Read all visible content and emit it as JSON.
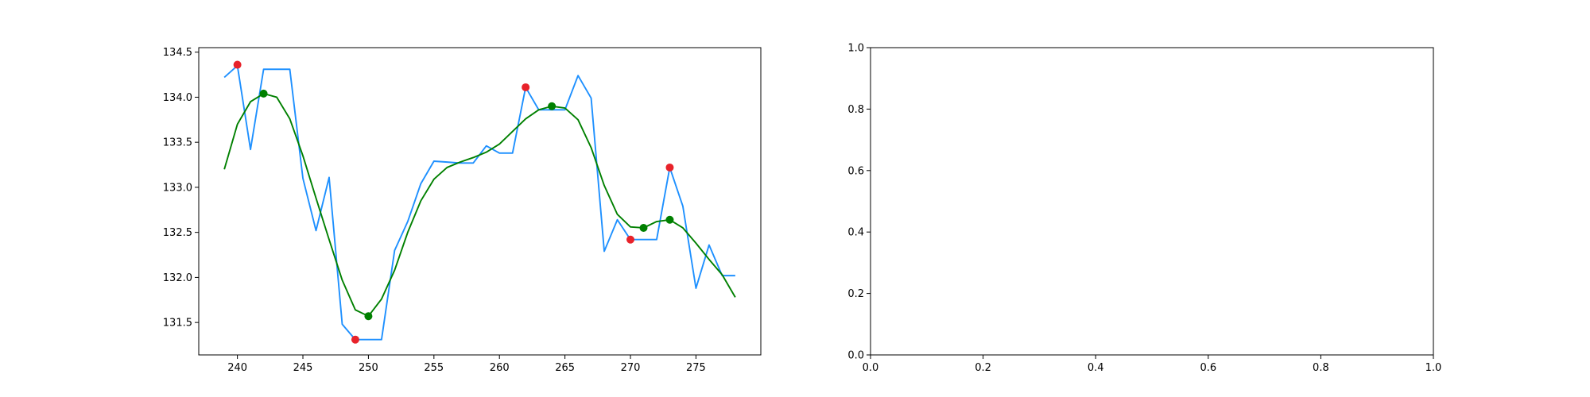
{
  "chart_data": [
    {
      "type": "line",
      "xlim": [
        237.05,
        279.95
      ],
      "ylim": [
        131.14,
        134.55
      ],
      "x_ticks": [
        "240",
        "245",
        "250",
        "255",
        "260",
        "265",
        "270",
        "275"
      ],
      "y_ticks": [
        "131.5",
        "132.0",
        "132.5",
        "133.0",
        "133.5",
        "134.0",
        "134.5"
      ],
      "series": [
        {
          "color": "#1e90ff",
          "x": [
            239,
            240,
            241,
            242,
            243,
            244,
            245,
            246,
            247,
            248,
            249,
            250,
            251,
            252,
            253,
            254,
            255,
            256,
            257,
            258,
            259,
            260,
            261,
            262,
            263,
            264,
            265,
            266,
            267,
            268,
            269,
            270,
            271,
            272,
            273,
            274,
            275,
            276,
            277,
            278
          ],
          "y": [
            134.22,
            134.35,
            133.42,
            134.31,
            134.31,
            134.31,
            133.1,
            132.52,
            133.11,
            131.48,
            131.31,
            131.31,
            131.31,
            132.3,
            132.62,
            133.04,
            133.29,
            133.28,
            133.27,
            133.27,
            133.46,
            133.38,
            133.38,
            134.11,
            133.86,
            133.86,
            133.86,
            134.24,
            133.99,
            132.29,
            132.64,
            132.42,
            132.42,
            132.42,
            133.22,
            132.79,
            131.88,
            132.36,
            132.02,
            132.02
          ]
        },
        {
          "color": "#008000",
          "x": [
            239,
            240,
            241,
            242,
            243,
            244,
            245,
            246,
            247,
            248,
            249,
            250,
            251,
            252,
            253,
            254,
            255,
            256,
            257,
            258,
            259,
            260,
            261,
            262,
            263,
            264,
            265,
            266,
            267,
            268,
            269,
            270,
            271,
            272,
            273,
            274,
            275,
            276,
            277,
            278
          ],
          "y": [
            133.2,
            133.7,
            133.95,
            134.04,
            134.0,
            133.76,
            133.35,
            132.88,
            132.42,
            131.97,
            131.64,
            131.57,
            131.76,
            132.08,
            132.5,
            132.85,
            133.09,
            133.22,
            133.28,
            133.33,
            133.39,
            133.48,
            133.62,
            133.76,
            133.86,
            133.9,
            133.88,
            133.75,
            133.44,
            133.02,
            132.7,
            132.56,
            132.55,
            132.62,
            132.64,
            132.55,
            132.38,
            132.2,
            132.03,
            131.78
          ]
        }
      ],
      "markers": [
        {
          "color": "#e8222a",
          "x": [
            240,
            249,
            262,
            270,
            273
          ],
          "y": [
            134.36,
            131.31,
            134.11,
            132.42,
            133.22
          ]
        },
        {
          "color": "#008000",
          "x": [
            242,
            250,
            264,
            271,
            273
          ],
          "y": [
            134.04,
            131.57,
            133.9,
            132.55,
            132.64
          ]
        }
      ]
    },
    {
      "type": "line",
      "xlim": [
        0.0,
        1.0
      ],
      "ylim": [
        0.0,
        1.0
      ],
      "x_ticks": [
        "0.0",
        "0.2",
        "0.4",
        "0.6",
        "0.8",
        "1.0"
      ],
      "y_ticks": [
        "0.0",
        "0.2",
        "0.4",
        "0.6",
        "0.8",
        "1.0"
      ],
      "series": [],
      "markers": []
    }
  ]
}
